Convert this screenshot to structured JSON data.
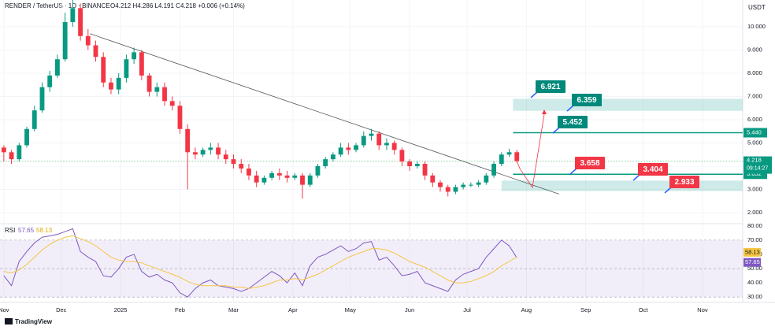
{
  "header": {
    "symbol": "RENDER / TetherUS · 1D · BINANCE",
    "ohlc": "O4.212 H4.286 L4.191 C4.218 +0.006 (+0.14%)",
    "currency": "USDT",
    "brand": "TradingView"
  },
  "chart_data": [
    {
      "type": "candlestick",
      "x": [
        0,
        4,
        8,
        12,
        16,
        20,
        24,
        28,
        32,
        36,
        40,
        44,
        48,
        52,
        56,
        60,
        64,
        68,
        72,
        76,
        80,
        84,
        88,
        92,
        96,
        100,
        104,
        108,
        112,
        116,
        120,
        124,
        128,
        132,
        136,
        140,
        144,
        148,
        152,
        156,
        160,
        164,
        168,
        172,
        176,
        180,
        184,
        188,
        192,
        196,
        200,
        204,
        208,
        212,
        216,
        220,
        224,
        228,
        232,
        236,
        240,
        244,
        248,
        252,
        256,
        260,
        264,
        268
      ],
      "open": [
        4.8,
        4.6,
        4.3,
        4.9,
        5.6,
        6.4,
        7.4,
        7.9,
        8.6,
        10.2,
        10.8,
        9.6,
        9.2,
        8.7,
        7.6,
        7.3,
        7.8,
        8.6,
        8.9,
        7.9,
        7.2,
        7.4,
        6.8,
        6.6,
        5.6,
        4.6,
        4.5,
        4.7,
        4.8,
        4.5,
        4.3,
        4.1,
        3.9,
        3.6,
        3.3,
        3.5,
        3.7,
        3.6,
        3.5,
        3.6,
        3.2,
        3.6,
        4.0,
        4.3,
        4.5,
        4.8,
        4.7,
        4.9,
        5.3,
        5.4,
        4.9,
        5.0,
        4.7,
        4.2,
        4.0,
        4.1,
        3.6,
        3.3,
        3.1,
        2.9,
        3.1,
        3.2,
        3.2,
        3.3,
        3.6,
        4.1,
        4.5,
        4.6
      ],
      "high": [
        4.9,
        4.7,
        5.0,
        5.7,
        6.6,
        7.6,
        8.1,
        8.8,
        10.6,
        11.2,
        11.0,
        9.9,
        9.4,
        8.9,
        7.8,
        8.0,
        8.8,
        9.1,
        9.0,
        8.0,
        7.6,
        7.6,
        7.0,
        6.8,
        5.8,
        4.8,
        4.8,
        5.0,
        5.0,
        4.7,
        4.5,
        4.3,
        4.1,
        3.8,
        3.6,
        3.8,
        3.9,
        3.8,
        3.7,
        3.7,
        3.7,
        4.1,
        4.4,
        4.6,
        5.0,
        5.0,
        5.0,
        5.5,
        5.6,
        5.5,
        5.2,
        5.1,
        4.8,
        4.3,
        4.2,
        4.2,
        3.7,
        3.4,
        3.2,
        3.2,
        3.3,
        3.3,
        3.4,
        3.7,
        4.2,
        4.6,
        4.75,
        4.7
      ],
      "low": [
        4.2,
        4.1,
        4.2,
        4.8,
        5.5,
        6.3,
        7.2,
        7.8,
        8.5,
        10.0,
        9.4,
        9.0,
        8.5,
        7.4,
        7.1,
        7.1,
        7.6,
        8.4,
        7.7,
        7.0,
        7.0,
        6.6,
        6.4,
        5.4,
        3.0,
        4.3,
        4.4,
        4.5,
        4.3,
        4.1,
        3.9,
        3.7,
        3.4,
        3.1,
        3.2,
        3.4,
        3.4,
        3.3,
        3.4,
        2.6,
        3.1,
        3.5,
        3.9,
        4.2,
        4.4,
        4.5,
        4.6,
        4.8,
        5.1,
        4.7,
        4.7,
        4.5,
        4.0,
        3.8,
        3.9,
        3.4,
        3.1,
        2.9,
        2.7,
        2.8,
        3.0,
        3.1,
        3.1,
        3.2,
        3.5,
        4.0,
        4.4,
        4.15
      ],
      "close": [
        4.6,
        4.3,
        4.9,
        5.6,
        6.4,
        7.4,
        7.9,
        8.6,
        10.2,
        10.8,
        9.6,
        9.2,
        8.7,
        7.6,
        7.3,
        7.8,
        8.6,
        8.9,
        7.9,
        7.2,
        7.4,
        6.8,
        6.6,
        5.6,
        4.6,
        4.5,
        4.7,
        4.8,
        4.5,
        4.3,
        4.1,
        3.9,
        3.6,
        3.3,
        3.5,
        3.7,
        3.6,
        3.5,
        3.6,
        3.2,
        3.6,
        4.0,
        4.3,
        4.5,
        4.8,
        4.7,
        4.9,
        5.3,
        5.4,
        4.9,
        5.0,
        4.7,
        4.2,
        4.0,
        4.1,
        3.6,
        3.3,
        3.1,
        2.9,
        3.1,
        3.2,
        3.2,
        3.3,
        3.6,
        4.1,
        4.5,
        4.6,
        4.218
      ],
      "up_color": "#089981",
      "down_color": "#f23645",
      "xlim": [
        -2,
        386
      ],
      "xticks": [
        {
          "value": 0,
          "label": "Nov"
        },
        {
          "value": 30,
          "label": "Dec"
        },
        {
          "value": 61,
          "label": "2025"
        },
        {
          "value": 92,
          "label": "Feb"
        },
        {
          "value": 120,
          "label": "Mar"
        },
        {
          "value": 151,
          "label": "Apr"
        },
        {
          "value": 181,
          "label": "May"
        },
        {
          "value": 212,
          "label": "Jun"
        },
        {
          "value": 242,
          "label": "Jul"
        },
        {
          "value": 273,
          "label": "Aug"
        },
        {
          "value": 304,
          "label": "Sep"
        },
        {
          "value": 334,
          "label": "Oct"
        },
        {
          "value": 365,
          "label": "Nov"
        }
      ],
      "ylim": [
        1.56,
        11.15
      ],
      "yticks": [
        {
          "value": 2,
          "label": "2.000"
        },
        {
          "value": 3,
          "label": "3.000"
        },
        {
          "value": 4,
          "label": "4.000"
        },
        {
          "value": 5,
          "label": "5.000"
        },
        {
          "value": 6,
          "label": "6.000"
        },
        {
          "value": 7,
          "label": "7.000"
        },
        {
          "value": 8,
          "label": "8.000"
        },
        {
          "value": 9,
          "label": "9.000"
        },
        {
          "value": 10,
          "label": "10.000"
        }
      ],
      "last_price": {
        "value": 4.218,
        "label": "4.218",
        "countdown": "09:14:27"
      },
      "levels": [
        {
          "value": 5.44,
          "label": "5.440"
        },
        {
          "value": 3.652,
          "label": "3.652"
        }
      ],
      "level_color": "#089981",
      "zones": [
        [
          6.38,
          6.9
        ],
        [
          2.93,
          3.38
        ]
      ],
      "zone_color": "rgba(38,166,154,0.22)",
      "trendline": {
        "x": [
          45,
          290
        ],
        "y": [
          9.7,
          2.8
        ]
      },
      "callouts": [
        {
          "value": 6.921,
          "color": "#00897b"
        },
        {
          "value": 6.359,
          "color": "#00897b"
        },
        {
          "value": 5.452,
          "color": "#00897b"
        },
        {
          "value": 3.658,
          "color": "#f23645"
        },
        {
          "value": 3.404,
          "color": "#f23645"
        },
        {
          "value": 2.933,
          "color": "#f23645"
        }
      ]
    },
    {
      "type": "line",
      "title": "RSI",
      "series": [
        {
          "name": "RSI",
          "color": "#7e57c2",
          "values": [
            45,
            38,
            55,
            62,
            68,
            72,
            73,
            74,
            76,
            78,
            62,
            58,
            55,
            45,
            44,
            50,
            58,
            60,
            48,
            44,
            46,
            42,
            40,
            33,
            30,
            36,
            40,
            42,
            38,
            37,
            36,
            34,
            36,
            40,
            44,
            48,
            45,
            40,
            47,
            38,
            52,
            58,
            60,
            63,
            66,
            62,
            64,
            68,
            69,
            56,
            58,
            52,
            45,
            46,
            48,
            40,
            38,
            36,
            34,
            42,
            46,
            48,
            50,
            58,
            64,
            70,
            66,
            57.65
          ]
        },
        {
          "color": "#f5c542",
          "values": [
            48,
            47,
            49,
            53,
            58,
            63,
            67,
            70,
            72,
            73,
            71,
            69,
            66,
            62,
            58,
            56,
            55,
            55,
            54,
            52,
            50,
            48,
            46,
            44,
            41,
            39,
            38,
            38,
            38,
            38,
            37,
            37,
            36,
            37,
            38,
            40,
            42,
            42,
            43,
            42,
            44,
            46,
            49,
            52,
            55,
            58,
            60,
            62,
            64,
            64,
            63,
            61,
            58,
            55,
            53,
            51,
            48,
            45,
            42,
            40,
            40,
            41,
            43,
            45,
            48,
            52,
            55,
            58.13
          ]
        }
      ],
      "last_values": [
        57.65,
        58.13
      ],
      "ylim": [
        29,
        81
      ],
      "yticks": [
        {
          "value": 30,
          "label": "30.00"
        },
        {
          "value": 40,
          "label": "40.00"
        },
        {
          "value": 50,
          "label": "50.00"
        },
        {
          "value": 60,
          "label": "60.00"
        },
        {
          "value": 70,
          "label": "70.00"
        },
        {
          "value": 80,
          "label": "80.00"
        }
      ],
      "band": [
        30,
        70
      ]
    }
  ]
}
